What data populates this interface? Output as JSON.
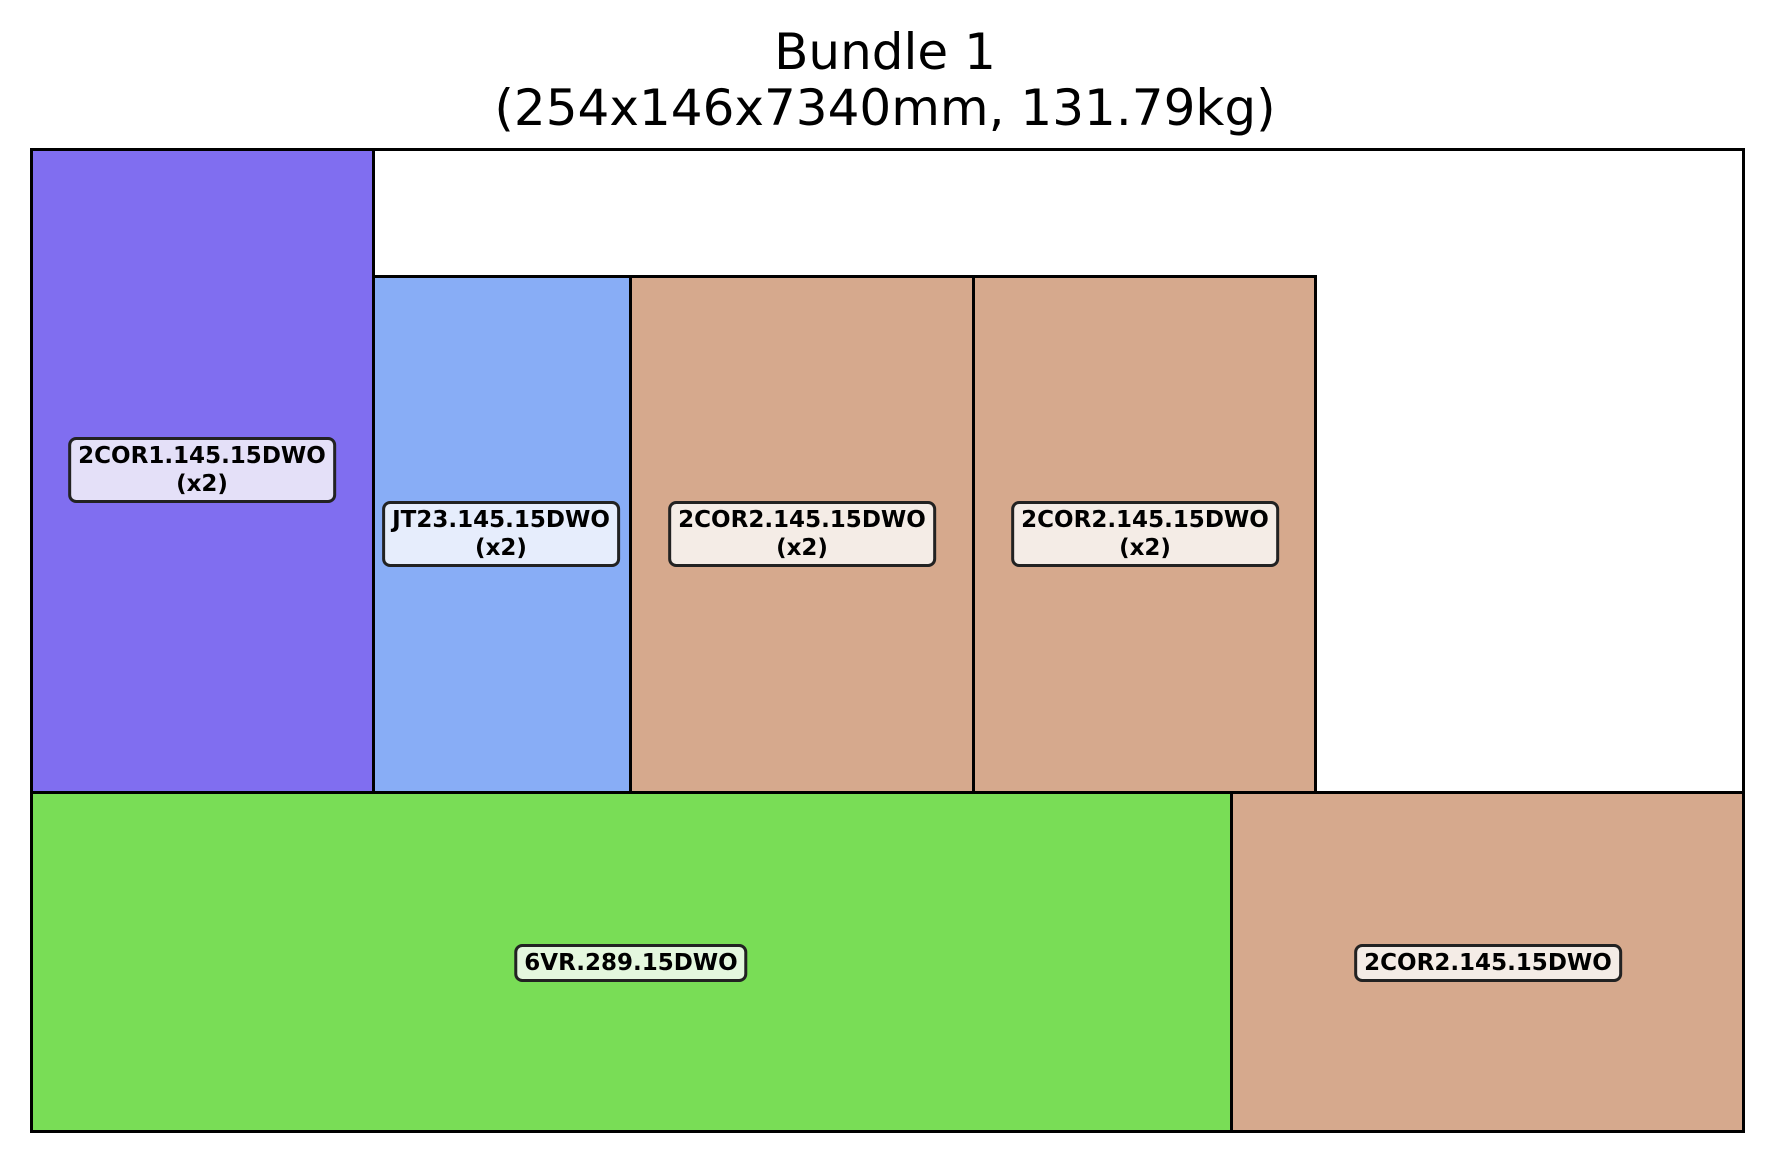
{
  "title": {
    "line1": "Bundle 1",
    "line2": "(254x146x7340mm, 131.79kg)"
  },
  "pieces": [
    {
      "id": "p1",
      "name": "2COR1.145.15DWO",
      "qty": "(x2)",
      "fill": "#806ef0",
      "label_bg": "#e4e0f8"
    },
    {
      "id": "p2",
      "name": "JT23.145.15DWO",
      "qty": "(x2)",
      "fill": "#88adf6",
      "label_bg": "#e6edfc"
    },
    {
      "id": "p3",
      "name": "2COR2.145.15DWO",
      "qty": "(x2)",
      "fill": "#d6a98d",
      "label_bg": "#f4ece6"
    },
    {
      "id": "p4",
      "name": "2COR2.145.15DWO",
      "qty": "(x2)",
      "fill": "#d6a98d",
      "label_bg": "#f4ece6"
    },
    {
      "id": "p5",
      "name": "6VR.289.15DWO",
      "qty": "",
      "fill": "#79dd56",
      "label_bg": "#e4f7de"
    },
    {
      "id": "p6",
      "name": "2COR2.145.15DWO",
      "qty": "",
      "fill": "#d6a98d",
      "label_bg": "#f4ece6"
    }
  ]
}
